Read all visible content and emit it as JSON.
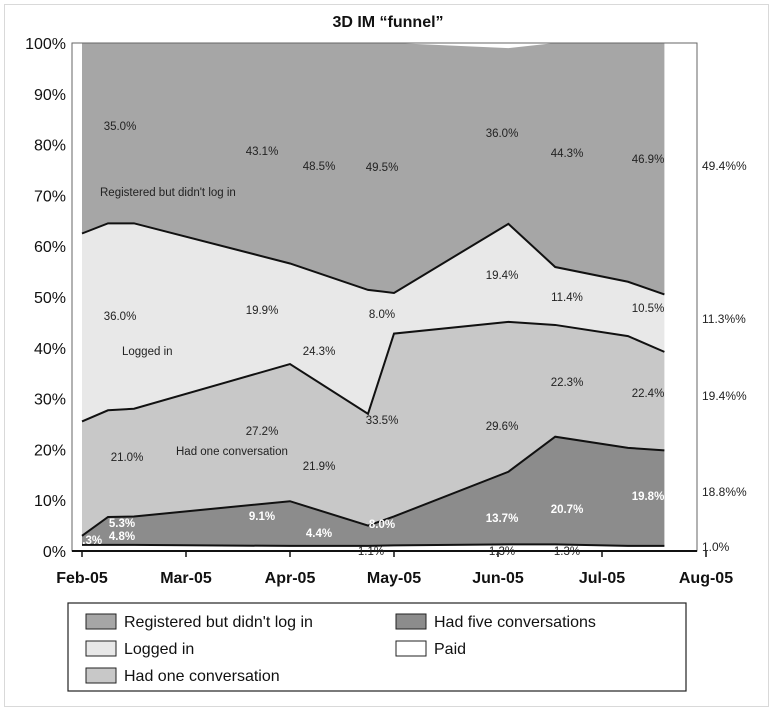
{
  "chart_data": {
    "type": "area",
    "stacked": true,
    "percent_stacked": true,
    "title": "3D IM “funnel”",
    "xlabel": "",
    "ylabel": "",
    "ylim": [
      0,
      100
    ],
    "y_ticks": [
      "0%",
      "10%",
      "20%",
      "30%",
      "40%",
      "50%",
      "60%",
      "70%",
      "80%",
      "90%",
      "100%"
    ],
    "x_ticks": [
      "Feb-05",
      "Mar-05",
      "Apr-05",
      "May-05",
      "Jun-05",
      "Jul-05",
      "Aug-05"
    ],
    "grid": false,
    "legend_position": "bottom",
    "x": [
      0,
      0.25,
      0.5,
      2.0,
      2.75,
      3.0,
      4.1,
      4.55,
      5.25,
      5.6
    ],
    "series": [
      {
        "name": "Paid",
        "color": "#ffffff",
        "values": [
          1.2,
          1.2,
          1.2,
          1.0,
          1.0,
          1.1,
          1.3,
          1.3,
          1.0,
          1.0
        ]
      },
      {
        "name": "Had five conversations",
        "color": "#8c8c8c",
        "values": [
          1.8,
          5.5,
          5.6,
          8.8,
          4.0,
          5.7,
          14.3,
          21.2,
          19.3,
          18.8
        ]
      },
      {
        "name": "Had one conversation",
        "color": "#c8c8c8",
        "values": [
          22.5,
          21.0,
          21.2,
          27.0,
          22.0,
          36.0,
          29.5,
          22.0,
          22.0,
          19.4
        ]
      },
      {
        "name": "Logged in",
        "color": "#e8e8e8",
        "values": [
          37.0,
          36.8,
          36.5,
          19.8,
          24.4,
          8.0,
          19.3,
          11.4,
          10.7,
          11.3
        ]
      },
      {
        "name": "Registered but didn't log in",
        "color": "#a6a6a6",
        "values": [
          37.5,
          35.5,
          35.5,
          43.4,
          48.6,
          49.2,
          34.6,
          44.1,
          47.0,
          49.5
        ]
      }
    ],
    "area_labels": [
      {
        "text": "35.0%",
        "style": "dark"
      },
      {
        "text": "43.1%",
        "style": "dark"
      },
      {
        "text": "48.5%",
        "style": "dark"
      },
      {
        "text": "49.5%",
        "style": "dark"
      },
      {
        "text": "36.0%",
        "style": "dark"
      },
      {
        "text": "44.3%",
        "style": "dark"
      },
      {
        "text": "46.9%",
        "style": "dark"
      },
      {
        "text": "36.0%",
        "style": "dark"
      },
      {
        "text": "19.9%",
        "style": "dark"
      },
      {
        "text": "24.3%",
        "style": "dark"
      },
      {
        "text": "8.0%",
        "style": "dark"
      },
      {
        "text": "19.4%",
        "style": "dark"
      },
      {
        "text": "11.4%",
        "style": "dark"
      },
      {
        "text": "10.5%",
        "style": "dark"
      },
      {
        "text": "21.0%",
        "style": "dark"
      },
      {
        "text": "27.2%",
        "style": "dark"
      },
      {
        "text": "21.9%",
        "style": "dark"
      },
      {
        "text": "33.5%",
        "style": "dark"
      },
      {
        "text": "29.6%",
        "style": "dark"
      },
      {
        "text": "22.3%",
        "style": "dark"
      },
      {
        "text": "22.4%",
        "style": "dark"
      },
      {
        "text": "5.3%",
        "style": "white"
      },
      {
        "text": "4.8%",
        "style": "white"
      },
      {
        "text": "9.1%",
        "style": "white"
      },
      {
        "text": "4.4%",
        "style": "white"
      },
      {
        "text": "8.0%",
        "style": "white"
      },
      {
        "text": "13.7%",
        "style": "white"
      },
      {
        "text": "20.7%",
        "style": "white"
      },
      {
        "text": "19.8%",
        "style": "white"
      },
      {
        "text": "2.3%",
        "style": "white"
      },
      {
        "text": "1.1%",
        "style": "dark"
      },
      {
        "text": "1.3%",
        "style": "dark"
      },
      {
        "text": "1.3%",
        "style": "dark"
      }
    ],
    "right_labels": [
      "49.4%%",
      "11.3%%",
      "19.4%%",
      "18.8%%",
      "1.0%"
    ],
    "series_annotations": [
      "Registered but didn't log in",
      "Logged in",
      "Had one conversation"
    ],
    "legend": [
      "Registered but didn't log in",
      "Had five conversations",
      "Logged in",
      "Paid",
      "Had one conversation"
    ]
  }
}
